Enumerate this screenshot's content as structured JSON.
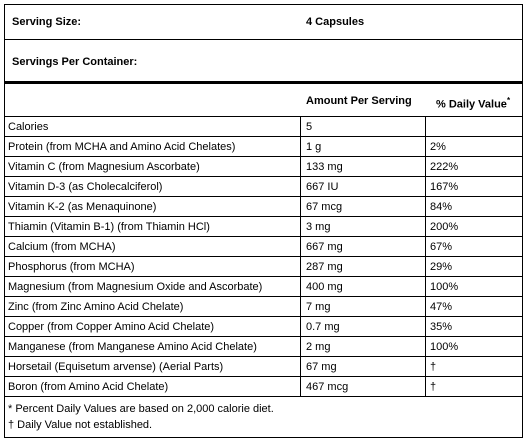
{
  "serving": {
    "size_label": "Serving Size:",
    "size_value": "4 Capsules",
    "per_container_label": "Servings Per Container:"
  },
  "header": {
    "amount": "Amount Per Serving",
    "daily_value": "% Daily Value",
    "marker": "*"
  },
  "rows": [
    [
      "Calories",
      "5"
    ],
    [
      "Protein (from MCHA and Amino Acid Chelates)",
      "1 g",
      "2%"
    ],
    [
      "Vitamin C (from Magnesium Ascorbate)",
      "133 mg",
      "222%"
    ],
    [
      "Vitamin D-3 (as Cholecalciferol)",
      "667 IU",
      "167%"
    ],
    [
      "Vitamin K-2 (as Menaquinone)",
      "67 mcg",
      "84%"
    ],
    [
      "Thiamin (Vitamin B-1) (from Thiamin HCl)",
      "3 mg",
      "200%"
    ],
    [
      "Calcium (from MCHA)",
      "667 mg",
      "67%"
    ],
    [
      "Phosphorus (from MCHA)",
      "287 mg",
      "29%"
    ],
    [
      "Magnesium (from Magnesium Oxide and Ascorbate)",
      "400 mg",
      "100%"
    ],
    [
      "Zinc (from Zinc Amino Acid Chelate)",
      "7 mg",
      "47%"
    ],
    [
      "Copper (from Copper Amino Acid Chelate)",
      "0.7 mg",
      "35%"
    ],
    [
      "Manganese (from Manganese Amino Acid Chelate)",
      "2 mg",
      "100%"
    ],
    [
      "Horsetail (Equisetum arvense) (Aerial Parts)",
      "67 mg",
      "†"
    ],
    [
      "Boron (from Amino Acid Chelate)",
      "467 mcg",
      "†"
    ]
  ],
  "footnotes": [
    "* Percent Daily Values are based on 2,000 calorie diet.",
    "† Daily Value not established."
  ]
}
